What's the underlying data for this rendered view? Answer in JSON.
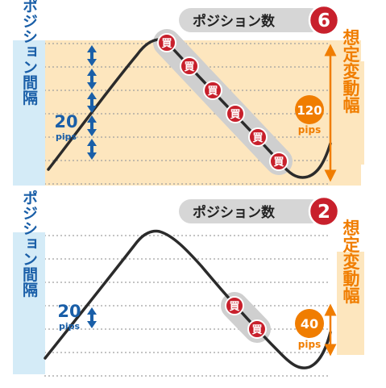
{
  "colors": {
    "blue": "#1a5fa8",
    "light_blue": "#d4ebf7",
    "orange": "#f07d00",
    "light_orange": "#fde6be",
    "red": "#c8202c",
    "pill_gray": "#d6d6d6",
    "band_gray": "#cfcfcf",
    "curve": "#2b2b2b",
    "dots": "#a0a0a0"
  },
  "panel_top": {
    "position_count_label": "ポジション数",
    "position_count": "6",
    "interval_label": "ポジション間隔",
    "interval_value": "20",
    "interval_unit": "pips",
    "fluctuation_value": "120",
    "fluctuation_unit": "pips",
    "fluctuation_label": "想定変動幅",
    "buy_marker": "買",
    "buy_count": 6
  },
  "panel_bottom": {
    "position_count_label": "ポジション数",
    "position_count": "2",
    "interval_label": "ポジション間隔",
    "interval_value": "20",
    "interval_unit": "pips",
    "fluctuation_value": "40",
    "fluctuation_unit": "pips",
    "fluctuation_label": "想定変動幅",
    "buy_marker": "買",
    "buy_count": 2
  }
}
